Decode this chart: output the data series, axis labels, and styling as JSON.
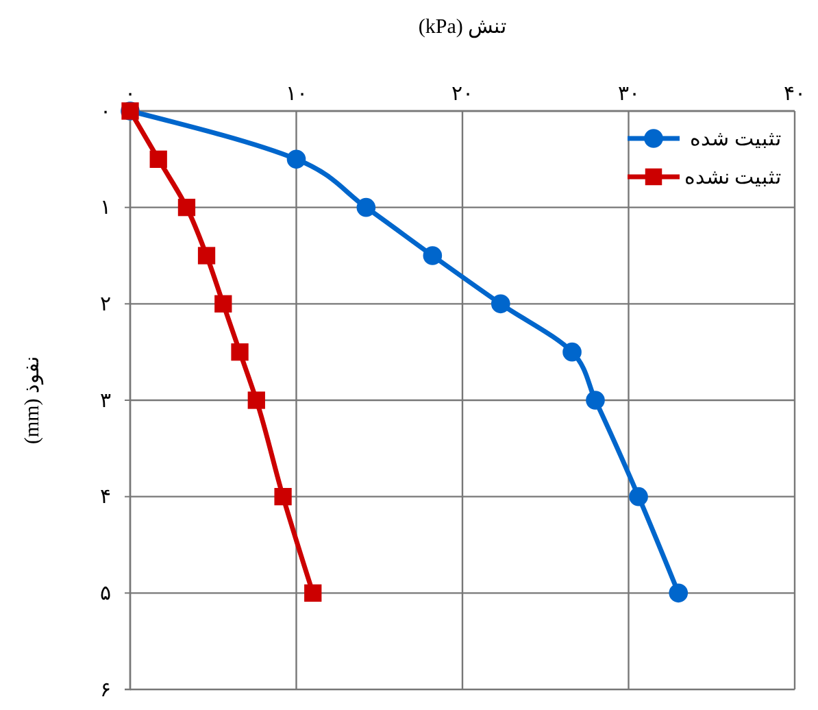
{
  "chart_data": {
    "type": "line",
    "xlabel": "تنش (kPa)",
    "ylabel": "نفوذ (mm)",
    "xlim": [
      0,
      40
    ],
    "xticks": [
      {
        "value": 0,
        "label": "۰"
      },
      {
        "value": 10,
        "label": "۱۰"
      },
      {
        "value": 20,
        "label": "۲۰"
      },
      {
        "value": 30,
        "label": "۳۰"
      },
      {
        "value": 40,
        "label": "۴۰"
      }
    ],
    "ylim": [
      6,
      0
    ],
    "yticks": [
      {
        "value": 0,
        "label": "۰"
      },
      {
        "value": 1,
        "label": "۱"
      },
      {
        "value": 2,
        "label": "۲"
      },
      {
        "value": 3,
        "label": "۳"
      },
      {
        "value": 4,
        "label": "۴"
      },
      {
        "value": 5,
        "label": "۵"
      },
      {
        "value": 6,
        "label": "۶"
      }
    ],
    "grid": true,
    "legend": "top right",
    "line_style": "solid",
    "series": [
      {
        "name": "تثبیت شده",
        "color": "#0066cc",
        "marker": "circle",
        "x": [
          0,
          10,
          14.2,
          18.2,
          22.3,
          26.6,
          28,
          30.6,
          33
        ],
        "values": [
          0,
          0.5,
          1,
          1.5,
          2,
          2.5,
          3,
          4,
          5
        ]
      },
      {
        "name": "تثبیت نشده",
        "color": "#cc0000",
        "marker": "square",
        "x": [
          0,
          1.7,
          3.4,
          4.6,
          5.6,
          6.6,
          7.6,
          9.2,
          11
        ],
        "values": [
          0,
          0.5,
          1,
          1.5,
          2,
          2.5,
          3,
          4,
          5
        ]
      }
    ]
  }
}
